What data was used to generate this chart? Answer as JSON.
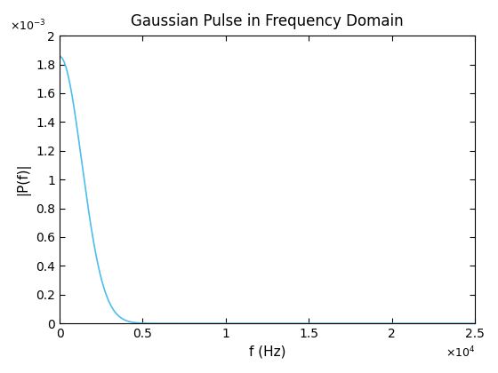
{
  "title": "Gaussian Pulse in Frequency Domain",
  "xlabel": "f (Hz)",
  "ylabel": "|P(f)|",
  "xlim": [
    0,
    25000
  ],
  "ylim": [
    0,
    0.002
  ],
  "line_color": "#4DBEEE",
  "line_width": 1.2,
  "sigma_t": 0.00012,
  "f_max": 25000,
  "amplitude": 0.001855,
  "num_points": 2000,
  "background_color": "#ffffff",
  "axes_face_color": "#ffffff",
  "tick_label_size": 10,
  "axis_label_size": 11,
  "title_fontsize": 12,
  "xticks": [
    0,
    5000,
    10000,
    15000,
    20000,
    25000
  ],
  "xtick_labels": [
    "0",
    "0.5",
    "1",
    "1.5",
    "2",
    "2.5"
  ],
  "yticks": [
    0,
    0.0002,
    0.0004,
    0.0006,
    0.0008,
    0.001,
    0.0012,
    0.0014,
    0.0016,
    0.0018,
    0.002
  ],
  "ytick_labels": [
    "0",
    "0.2",
    "0.4",
    "0.6",
    "0.8",
    "1",
    "1.2",
    "1.4",
    "1.6",
    "1.8",
    "2"
  ]
}
